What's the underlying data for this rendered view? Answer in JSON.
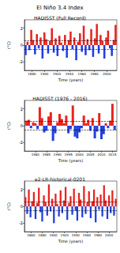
{
  "title": "El Niño 3.4 Index",
  "chart_data": [
    {
      "type": "bar",
      "title": "HADISST (Full Record)",
      "x_label": "Time (years)",
      "y_label": "(°C)",
      "x": [
        1870,
        1873,
        1876,
        1879,
        1882,
        1885,
        1888,
        1891,
        1894,
        1897,
        1900,
        1903,
        1906,
        1909,
        1912,
        1915,
        1918,
        1921,
        1924,
        1927,
        1930,
        1933,
        1936,
        1939,
        1942,
        1945,
        1948,
        1951,
        1954,
        1957,
        1960,
        1963,
        1966,
        1969,
        1972,
        1975,
        1978,
        1981,
        1984,
        1987,
        1990,
        1993,
        1996,
        1999,
        2002,
        2005,
        2008,
        2011,
        2014
      ],
      "series": [
        {
          "color": "#e8231f",
          "values": [
            null,
            0.4,
            null,
            1.8,
            0.6,
            null,
            1.3,
            null,
            0.9,
            null,
            1.5,
            0.7,
            null,
            0.5,
            2.0,
            null,
            0.8,
            null,
            1.1,
            0.3,
            null,
            1.2,
            null,
            0.6,
            1.6,
            null,
            0.9,
            null,
            0.4,
            1.4,
            null,
            2.3,
            null,
            0.7,
            null,
            1.9,
            null,
            0.8,
            2.5,
            null,
            1.2,
            0.5,
            null,
            0.9,
            1.7,
            null,
            null,
            0.6,
            2.4
          ]
        },
        {
          "color": "#1f3fe0",
          "values": [
            -1.2,
            null,
            -0.6,
            null,
            null,
            -1.1,
            null,
            -0.4,
            null,
            -1.6,
            null,
            null,
            -1.0,
            null,
            null,
            -0.9,
            null,
            -1.3,
            null,
            null,
            -0.7,
            null,
            -1.5,
            null,
            null,
            -0.5,
            null,
            -1.8,
            null,
            null,
            -0.8,
            null,
            -1.2,
            null,
            -0.6,
            null,
            -1.4,
            null,
            null,
            -1.0,
            null,
            null,
            -1.6,
            null,
            null,
            -0.4,
            -1.3,
            null,
            null
          ]
        }
      ],
      "thresholds": [
        -0.5,
        0.5
      ],
      "xlim": [
        1868,
        2016
      ],
      "xticks": [
        1880,
        1900,
        1920,
        1940,
        1960,
        1980,
        2000
      ],
      "ylim": [
        -3,
        3
      ],
      "yticks": [
        -2,
        0,
        2
      ],
      "grid": false
    },
    {
      "type": "bar",
      "title": "HADISST (1976 - 2016)",
      "x_label": "Time (years)",
      "y_label": "(°C)",
      "x": [
        1976,
        1977,
        1978,
        1979,
        1980,
        1981,
        1982,
        1983,
        1984,
        1985,
        1986,
        1987,
        1988,
        1989,
        1990,
        1991,
        1992,
        1993,
        1994,
        1995,
        1996,
        1997,
        1998,
        1999,
        2000,
        2001,
        2002,
        2003,
        2004,
        2005,
        2006,
        2007,
        2008,
        2009,
        2010,
        2011,
        2012,
        2013,
        2014,
        2015,
        2016
      ],
      "series": [
        {
          "color": "#e8231f",
          "values": [
            0.6,
            0.7,
            null,
            0.4,
            0.3,
            null,
            2.2,
            0.9,
            null,
            null,
            1.1,
            1.6,
            null,
            null,
            0.4,
            1.4,
            0.8,
            0.3,
            1.2,
            null,
            null,
            2.4,
            null,
            null,
            null,
            null,
            1.2,
            0.3,
            0.7,
            null,
            0.9,
            null,
            null,
            1.5,
            null,
            null,
            0.3,
            null,
            0.6,
            2.6,
            null
          ]
        },
        {
          "color": "#1f3fe0",
          "values": [
            null,
            null,
            -0.3,
            null,
            null,
            -0.4,
            null,
            null,
            -0.8,
            -0.6,
            null,
            null,
            -1.8,
            -0.9,
            null,
            null,
            null,
            null,
            null,
            -0.9,
            -0.4,
            null,
            -1.3,
            -1.5,
            -0.8,
            -0.3,
            null,
            null,
            null,
            -0.6,
            null,
            -1.5,
            -0.7,
            null,
            -1.6,
            -1.0,
            null,
            -0.3,
            null,
            null,
            -0.5
          ]
        }
      ],
      "thresholds": [
        -0.5,
        0.5
      ],
      "xlim": [
        1975,
        2017
      ],
      "xticks": [
        1980,
        1985,
        1990,
        1995,
        2000,
        2005,
        2010,
        2015
      ],
      "ylim": [
        -3,
        3
      ],
      "yticks": [
        -2,
        0,
        2
      ],
      "grid": false
    },
    {
      "type": "bar",
      "title": "e2-LR-historical-0201",
      "x_label": "Time (years)",
      "y_label": "(°C)",
      "x": [
        1850,
        1853,
        1856,
        1859,
        1862,
        1865,
        1868,
        1871,
        1874,
        1877,
        1880,
        1883,
        1886,
        1889,
        1892,
        1895,
        1898,
        1901,
        1904,
        1907,
        1910,
        1913,
        1916,
        1919,
        1922,
        1925,
        1928,
        1931,
        1934,
        1937,
        1940,
        1943,
        1946,
        1949,
        1952,
        1955,
        1958,
        1961,
        1964,
        1967,
        1970,
        1973,
        1976,
        1979,
        1982,
        1985,
        1988,
        1991,
        1994,
        1997,
        2000,
        2003,
        2006,
        2009,
        2012
      ],
      "series": [
        {
          "color": "#e8231f",
          "values": [
            1.1,
            null,
            2.0,
            null,
            0.6,
            1.7,
            null,
            0.4,
            2.2,
            null,
            null,
            1.3,
            0.5,
            null,
            2.6,
            null,
            0.9,
            null,
            1.5,
            0.3,
            null,
            1.9,
            null,
            0.7,
            2.3,
            null,
            0.4,
            1.2,
            null,
            2.1,
            null,
            null,
            1.6,
            0.8,
            null,
            2.4,
            null,
            0.5,
            1.8,
            null,
            0.6,
            2.0,
            null,
            1.1,
            null,
            1.4,
            null,
            2.5,
            0.7,
            null,
            1.3,
            null,
            1.9,
            null,
            0.9
          ]
        },
        {
          "color": "#1f3fe0",
          "values": [
            null,
            -0.9,
            null,
            -1.3,
            null,
            null,
            -1.5,
            null,
            null,
            -0.7,
            -1.8,
            null,
            null,
            -1.1,
            null,
            -0.6,
            null,
            -2.0,
            null,
            null,
            -1.2,
            null,
            -0.8,
            null,
            null,
            -1.6,
            null,
            null,
            -1.0,
            null,
            -0.5,
            -1.7,
            null,
            null,
            -1.3,
            null,
            -0.9,
            null,
            null,
            -1.4,
            null,
            null,
            -1.9,
            null,
            -0.4,
            null,
            -1.2,
            null,
            null,
            -1.5,
            null,
            -0.8,
            null,
            -1.1,
            null
          ]
        }
      ],
      "thresholds": [
        -0.5,
        0.5
      ],
      "xlim": [
        1848,
        2014
      ],
      "xticks": [
        1860,
        1880,
        1900,
        1920,
        1940,
        1960,
        1980,
        2000
      ],
      "ylim": [
        -3,
        3
      ],
      "yticks": [
        -2,
        0,
        2
      ],
      "grid": false
    }
  ]
}
